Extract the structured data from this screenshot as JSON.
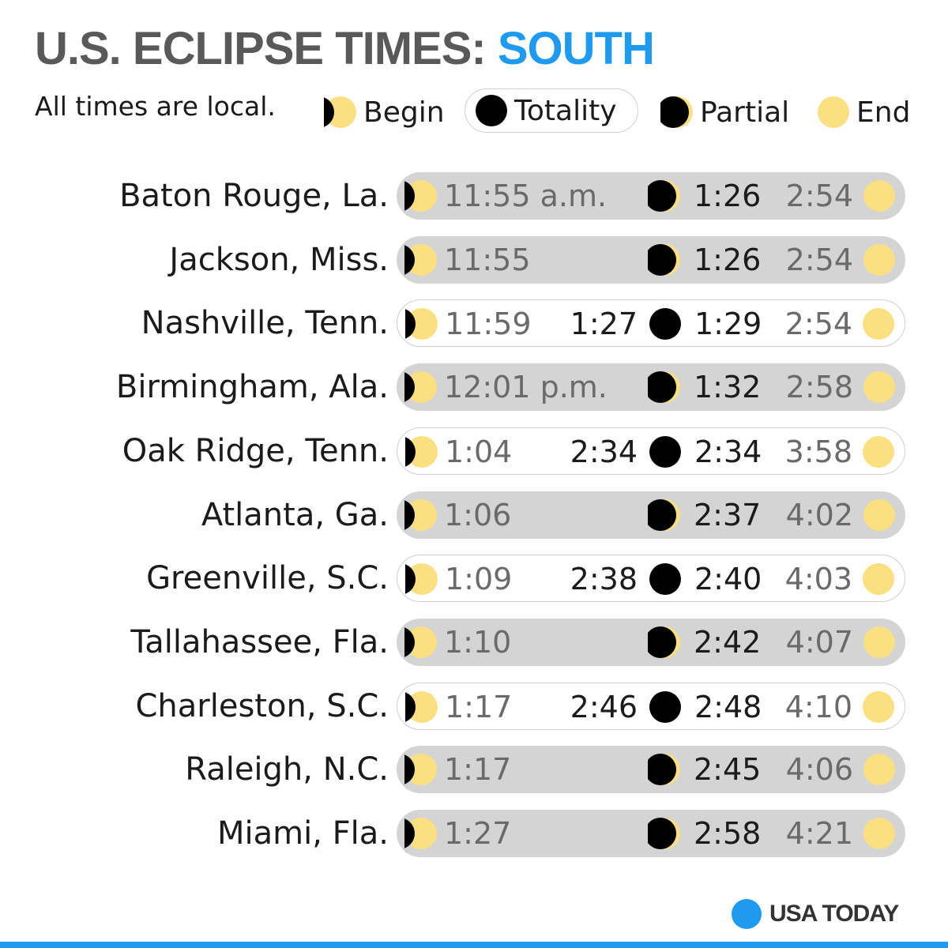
{
  "title": {
    "prefix": "U.S. ECLIPSE TIMES: ",
    "accent": "SOUTH"
  },
  "legend": {
    "note": "All times are local.",
    "begin": "Begin",
    "totality": "Totality",
    "partial": "Partial",
    "end": "End"
  },
  "colors": {
    "accent": "#1e9bf0",
    "sun": "#fbe082",
    "moon": "#000000",
    "pill_partial": "#d4d4d4"
  },
  "rows": [
    {
      "city": "Baton Rouge, La.",
      "begin": "11:55 a.m.",
      "totality": "",
      "partial": "1:26",
      "end": "2:54",
      "has_totality": false
    },
    {
      "city": "Jackson, Miss.",
      "begin": "11:55",
      "totality": "",
      "partial": "1:26",
      "end": "2:54",
      "has_totality": false
    },
    {
      "city": "Nashville, Tenn.",
      "begin": "11:59",
      "totality": "1:27",
      "partial": "1:29",
      "end": "2:54",
      "has_totality": true
    },
    {
      "city": "Birmingham, Ala.",
      "begin": "12:01 p.m.",
      "totality": "",
      "partial": "1:32",
      "end": "2:58",
      "has_totality": false
    },
    {
      "city": "Oak Ridge, Tenn.",
      "begin": "1:04",
      "totality": "2:34",
      "partial": "2:34",
      "end": "3:58",
      "has_totality": true
    },
    {
      "city": "Atlanta, Ga.",
      "begin": "1:06",
      "totality": "",
      "partial": "2:37",
      "end": "4:02",
      "has_totality": false
    },
    {
      "city": "Greenville, S.C.",
      "begin": "1:09",
      "totality": "2:38",
      "partial": "2:40",
      "end": "4:03",
      "has_totality": true
    },
    {
      "city": "Tallahassee, Fla.",
      "begin": "1:10",
      "totality": "",
      "partial": "2:42",
      "end": "4:07",
      "has_totality": false
    },
    {
      "city": "Charleston, S.C.",
      "begin": "1:17",
      "totality": "2:46",
      "partial": "2:48",
      "end": "4:10",
      "has_totality": true
    },
    {
      "city": "Raleigh, N.C.",
      "begin": "1:17",
      "totality": "",
      "partial": "2:45",
      "end": "4:06",
      "has_totality": false
    },
    {
      "city": "Miami, Fla.",
      "begin": "1:27",
      "totality": "",
      "partial": "2:58",
      "end": "4:21",
      "has_totality": false
    }
  ],
  "brand": {
    "name": "USA TODAY"
  }
}
